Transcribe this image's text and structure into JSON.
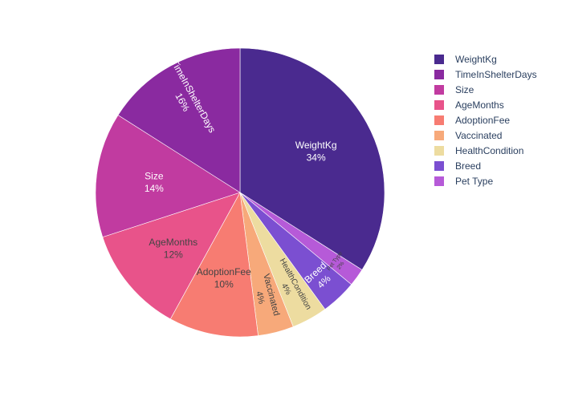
{
  "chart_data": {
    "type": "pie",
    "title": "",
    "legend_position": "right",
    "direction": "clockwise",
    "start_angle_deg": 0,
    "slices": [
      {
        "label": "WeightKg",
        "value": 34,
        "percent_text": "34%",
        "color": "#4a2a8f",
        "label_color": "#ffffff",
        "label_mode": "horizontal",
        "font_size": 12
      },
      {
        "label": "Pet Type",
        "value": 2,
        "percent_text": "2%",
        "color": "#b65ad8",
        "label_color": "#444444",
        "label_mode": "tangential",
        "font_size": 7
      },
      {
        "label": "Breed",
        "value": 4,
        "percent_text": "4%",
        "color": "#7b4fd1",
        "label_color": "#ffffff",
        "label_mode": "tangential",
        "font_size": 12
      },
      {
        "label": "HealthCondition",
        "value": 4,
        "percent_text": "4%",
        "color": "#eddca0",
        "label_color": "#444444",
        "label_mode": "radial",
        "font_size": 10
      },
      {
        "label": "Vaccinated",
        "value": 4,
        "percent_text": "4%",
        "color": "#f7a97a",
        "label_color": "#444444",
        "label_mode": "radial",
        "font_size": 11
      },
      {
        "label": "AdoptionFee",
        "value": 10,
        "percent_text": "10%",
        "color": "#f77c72",
        "label_color": "#444444",
        "label_mode": "horizontal",
        "font_size": 12
      },
      {
        "label": "AgeMonths",
        "value": 12,
        "percent_text": "12%",
        "color": "#e8538a",
        "label_color": "#444444",
        "label_mode": "horizontal",
        "font_size": 12
      },
      {
        "label": "Size",
        "value": 14,
        "percent_text": "14%",
        "color": "#c13ba0",
        "label_color": "#ffffff",
        "label_mode": "horizontal",
        "font_size": 12
      },
      {
        "label": "TimeInShelterDays",
        "value": 16,
        "percent_text": "16%",
        "color": "#8a2aa0",
        "label_color": "#ffffff",
        "label_mode": "radial",
        "font_size": 12
      }
    ],
    "legend": [
      {
        "label": "WeightKg",
        "color": "#4a2a8f"
      },
      {
        "label": "TimeInShelterDays",
        "color": "#8a2aa0"
      },
      {
        "label": "Size",
        "color": "#c13ba0"
      },
      {
        "label": "AgeMonths",
        "color": "#e8538a"
      },
      {
        "label": "AdoptionFee",
        "color": "#f77c72"
      },
      {
        "label": "Vaccinated",
        "color": "#f7a97a"
      },
      {
        "label": "HealthCondition",
        "color": "#eddca0"
      },
      {
        "label": "Breed",
        "color": "#7b4fd1"
      },
      {
        "label": "Pet Type",
        "color": "#b65ad8"
      }
    ]
  }
}
